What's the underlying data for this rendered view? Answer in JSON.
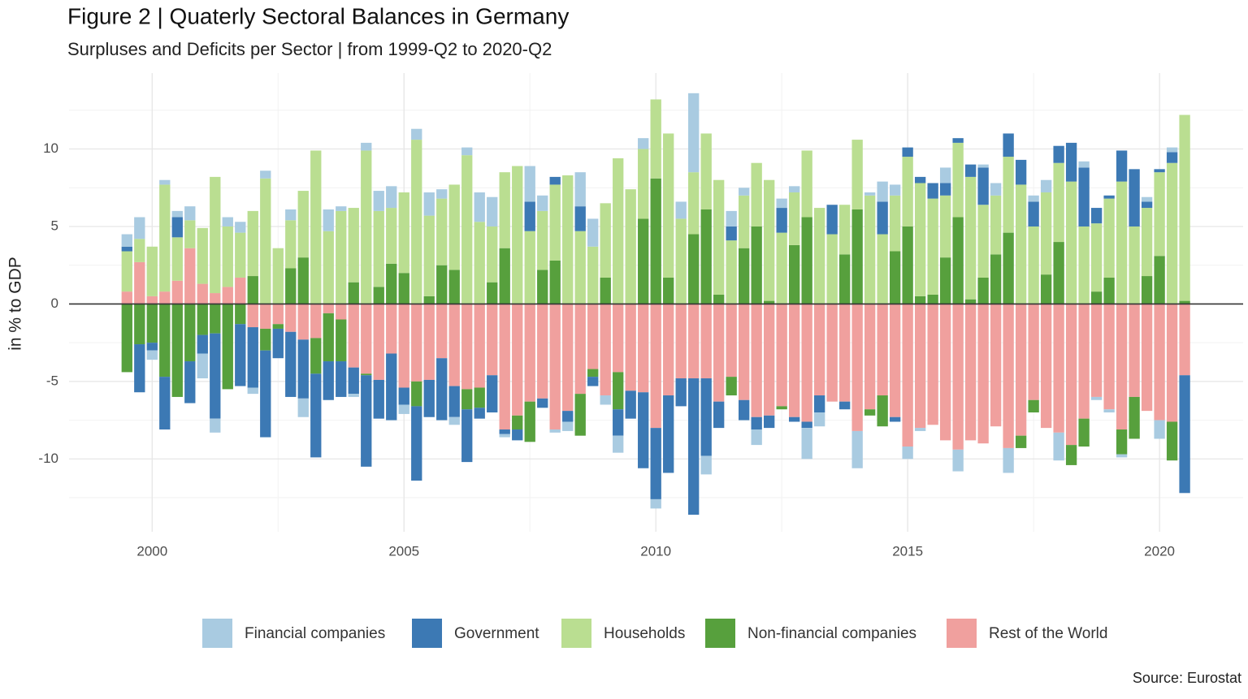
{
  "chart_data": {
    "type": "bar",
    "stacked": true,
    "title": "Figure 2 | Quaterly Sectoral Balances in Germany",
    "subtitle": "Surpluses and Deficits per Sector | from 1999-Q2 to 2020-Q2",
    "y_label": "in % to GDP",
    "source": "Source: Eurostat",
    "legend_position": "bottom",
    "grid": true,
    "xlim": [
      1998.35,
      2021.66
    ],
    "xticks": [
      2000,
      2005,
      2010,
      2015,
      2020
    ],
    "ylim": [
      -14.7,
      14.9
    ],
    "yticks": [
      -10,
      -5,
      0,
      5,
      10
    ],
    "x": [
      1999.5,
      1999.75,
      2000,
      2000.25,
      2000.5,
      2000.75,
      2001,
      2001.25,
      2001.5,
      2001.75,
      2002,
      2002.25,
      2002.5,
      2002.75,
      2003,
      2003.25,
      2003.5,
      2003.75,
      2004,
      2004.25,
      2004.5,
      2004.75,
      2005,
      2005.25,
      2005.5,
      2005.75,
      2006,
      2006.25,
      2006.5,
      2006.75,
      2007,
      2007.25,
      2007.5,
      2007.75,
      2008,
      2008.25,
      2008.5,
      2008.75,
      2009,
      2009.25,
      2009.5,
      2009.75,
      2010,
      2010.25,
      2010.5,
      2010.75,
      2011,
      2011.25,
      2011.5,
      2011.75,
      2012,
      2012.25,
      2012.5,
      2012.75,
      2013,
      2013.25,
      2013.5,
      2013.75,
      2014,
      2014.25,
      2014.5,
      2014.75,
      2015,
      2015.25,
      2015.5,
      2015.75,
      2016,
      2016.25,
      2016.5,
      2016.75,
      2017,
      2017.25,
      2017.5,
      2017.75,
      2018,
      2018.25,
      2018.5,
      2018.75,
      2019,
      2019.25,
      2019.5,
      2019.75,
      2020,
      2020.25,
      2020.5
    ],
    "series": [
      {
        "name": "Financial companies",
        "color": "#a9cbe1",
        "values": [
          0.8,
          1.4,
          -0.6,
          0.3,
          0.4,
          0.9,
          -1.6,
          -0.9,
          0.6,
          0.7,
          -0.4,
          0.5,
          0,
          0.7,
          -1.2,
          0,
          1.4,
          0.3,
          -0.2,
          0.5,
          1.3,
          1.4,
          -0.6,
          0.7,
          1.5,
          0.6,
          -0.5,
          0.5,
          1.9,
          1.9,
          -0.2,
          0,
          2.3,
          1.0,
          -0.2,
          -0.6,
          2.2,
          1.8,
          -0.6,
          -1.1,
          0,
          0.7,
          -0.6,
          0,
          1.1,
          5.1,
          -1.2,
          0,
          1.0,
          0.5,
          -1.0,
          0,
          0.6,
          0.4,
          -2.0,
          -0.9,
          0,
          0,
          -2.4,
          0.2,
          1.3,
          0.7,
          -0.8,
          -0.2,
          0,
          1.0,
          -1.4,
          0,
          0.2,
          0.8,
          -1.6,
          0,
          0.4,
          0.8,
          -1.8,
          0,
          0.4,
          -0.2,
          -0.2,
          -0.2,
          0,
          0.3,
          -1.2,
          0.3,
          0
        ]
      },
      {
        "name": "Government",
        "color": "#3c79b4",
        "values": [
          0.3,
          -3.1,
          -0.5,
          -3.4,
          1.3,
          -2.7,
          -1.2,
          -5.5,
          0,
          -4.0,
          -3.9,
          -5.6,
          -1.9,
          -4.2,
          -3.8,
          -5.4,
          -2.5,
          -2.3,
          -1.7,
          -5.9,
          -2.5,
          -4.3,
          -1.1,
          -4.8,
          -2.4,
          -4.0,
          -2.0,
          -3.4,
          -0.7,
          -2.4,
          -0.3,
          -0.7,
          1.9,
          -0.6,
          0.5,
          -0.7,
          1.6,
          -0.6,
          0,
          -1.7,
          -1.8,
          -4.9,
          -4.6,
          -5.0,
          -1.8,
          -8.8,
          -5.0,
          -1.7,
          0.9,
          -1.3,
          -0.8,
          -0.8,
          1.6,
          -0.3,
          -0.4,
          -1.1,
          1.9,
          -0.5,
          0,
          0,
          2.1,
          -0.3,
          0.6,
          0.4,
          1.0,
          0.8,
          0.3,
          0.8,
          2.4,
          0,
          1.5,
          1.6,
          1.6,
          0,
          1.1,
          2.5,
          3.8,
          1.0,
          0.2,
          2.0,
          3.7,
          0.4,
          0.2,
          0.7,
          -7.6
        ]
      },
      {
        "name": "Households",
        "color": "#bade91",
        "values": [
          2.6,
          1.5,
          3.2,
          6.9,
          2.8,
          1.8,
          3.6,
          7.5,
          3.9,
          2.9,
          4.2,
          8.1,
          3.6,
          3.1,
          4.3,
          9.9,
          4.7,
          6.0,
          4.8,
          9.9,
          4.9,
          3.6,
          5.2,
          10.6,
          5.2,
          4.3,
          5.5,
          9.6,
          5.3,
          3.6,
          4.9,
          8.9,
          4.7,
          3.8,
          4.9,
          8.3,
          4.7,
          3.7,
          4.8,
          9.4,
          7.4,
          4.5,
          5.1,
          9.3,
          5.5,
          4.0,
          4.9,
          7.4,
          4.1,
          3.4,
          4.1,
          7.8,
          4.6,
          3.4,
          4.3,
          6.2,
          4.5,
          3.2,
          4.5,
          7.0,
          4.5,
          3.6,
          4.5,
          7.3,
          6.2,
          4.0,
          4.8,
          7.9,
          4.7,
          3.8,
          4.9,
          7.7,
          5.0,
          5.3,
          5.1,
          7.9,
          5.0,
          4.4,
          5.1,
          7.9,
          5.0,
          4.4,
          5.4,
          9.1,
          12.0
        ]
      },
      {
        "name": "Non-financial companies",
        "color": "#57a03d",
        "values": [
          -4.4,
          -2.6,
          -2.5,
          -4.7,
          -6.0,
          -3.7,
          -2.0,
          -1.9,
          -5.5,
          -1.3,
          1.8,
          -1.4,
          -0.3,
          2.3,
          3.0,
          -2.3,
          -3.1,
          -2.7,
          1.4,
          -0.1,
          1.1,
          2.6,
          2.0,
          -1.6,
          0.5,
          2.5,
          2.2,
          -1.3,
          -1.3,
          1.4,
          3.6,
          -0.9,
          -2.6,
          2.2,
          2.8,
          0,
          -2.7,
          -0.5,
          1.7,
          -2.4,
          0,
          5.5,
          8.1,
          1.7,
          0,
          4.5,
          6.1,
          0.6,
          -1.2,
          3.6,
          5.0,
          0.2,
          -0.2,
          3.8,
          5.6,
          0,
          0,
          3.2,
          6.1,
          -0.4,
          -2.0,
          3.4,
          5.0,
          0.5,
          0.6,
          3.0,
          5.6,
          0.3,
          1.7,
          3.2,
          4.6,
          -0.8,
          -0.8,
          1.9,
          4.0,
          -1.3,
          -1.8,
          0.8,
          1.7,
          -1.6,
          -2.7,
          1.8,
          3.1,
          -2.5,
          0.2
        ]
      },
      {
        "name": "Rest of the World",
        "color": "#f0a09e",
        "values": [
          0.8,
          2.7,
          0.5,
          0.8,
          1.5,
          3.6,
          1.3,
          0.7,
          1.1,
          1.7,
          -1.5,
          -1.6,
          -1.3,
          -1.8,
          -2.3,
          -2.2,
          -0.6,
          -1.0,
          -4.1,
          -4.5,
          -4.9,
          -3.2,
          -5.4,
          -5.0,
          -4.9,
          -3.5,
          -5.3,
          -5.5,
          -5.4,
          -4.6,
          -8.1,
          -7.2,
          -6.3,
          -6.1,
          -8.1,
          -6.9,
          -5.8,
          -4.2,
          -5.9,
          -4.4,
          -5.6,
          -5.7,
          -8.0,
          -5.9,
          -4.8,
          -4.8,
          -4.8,
          -6.3,
          -4.7,
          -6.2,
          -7.3,
          -7.2,
          -6.6,
          -7.3,
          -7.6,
          -5.9,
          -6.3,
          -6.3,
          -8.2,
          -6.8,
          -5.9,
          -7.3,
          -9.2,
          -8.0,
          -7.8,
          -8.8,
          -9.4,
          -8.8,
          -9.0,
          -7.9,
          -9.3,
          -8.5,
          -6.2,
          -8.0,
          -8.3,
          -9.1,
          -7.4,
          -6.0,
          -6.8,
          -8.1,
          -6.0,
          -6.9,
          -7.5,
          -7.6,
          -4.6
        ]
      }
    ]
  }
}
